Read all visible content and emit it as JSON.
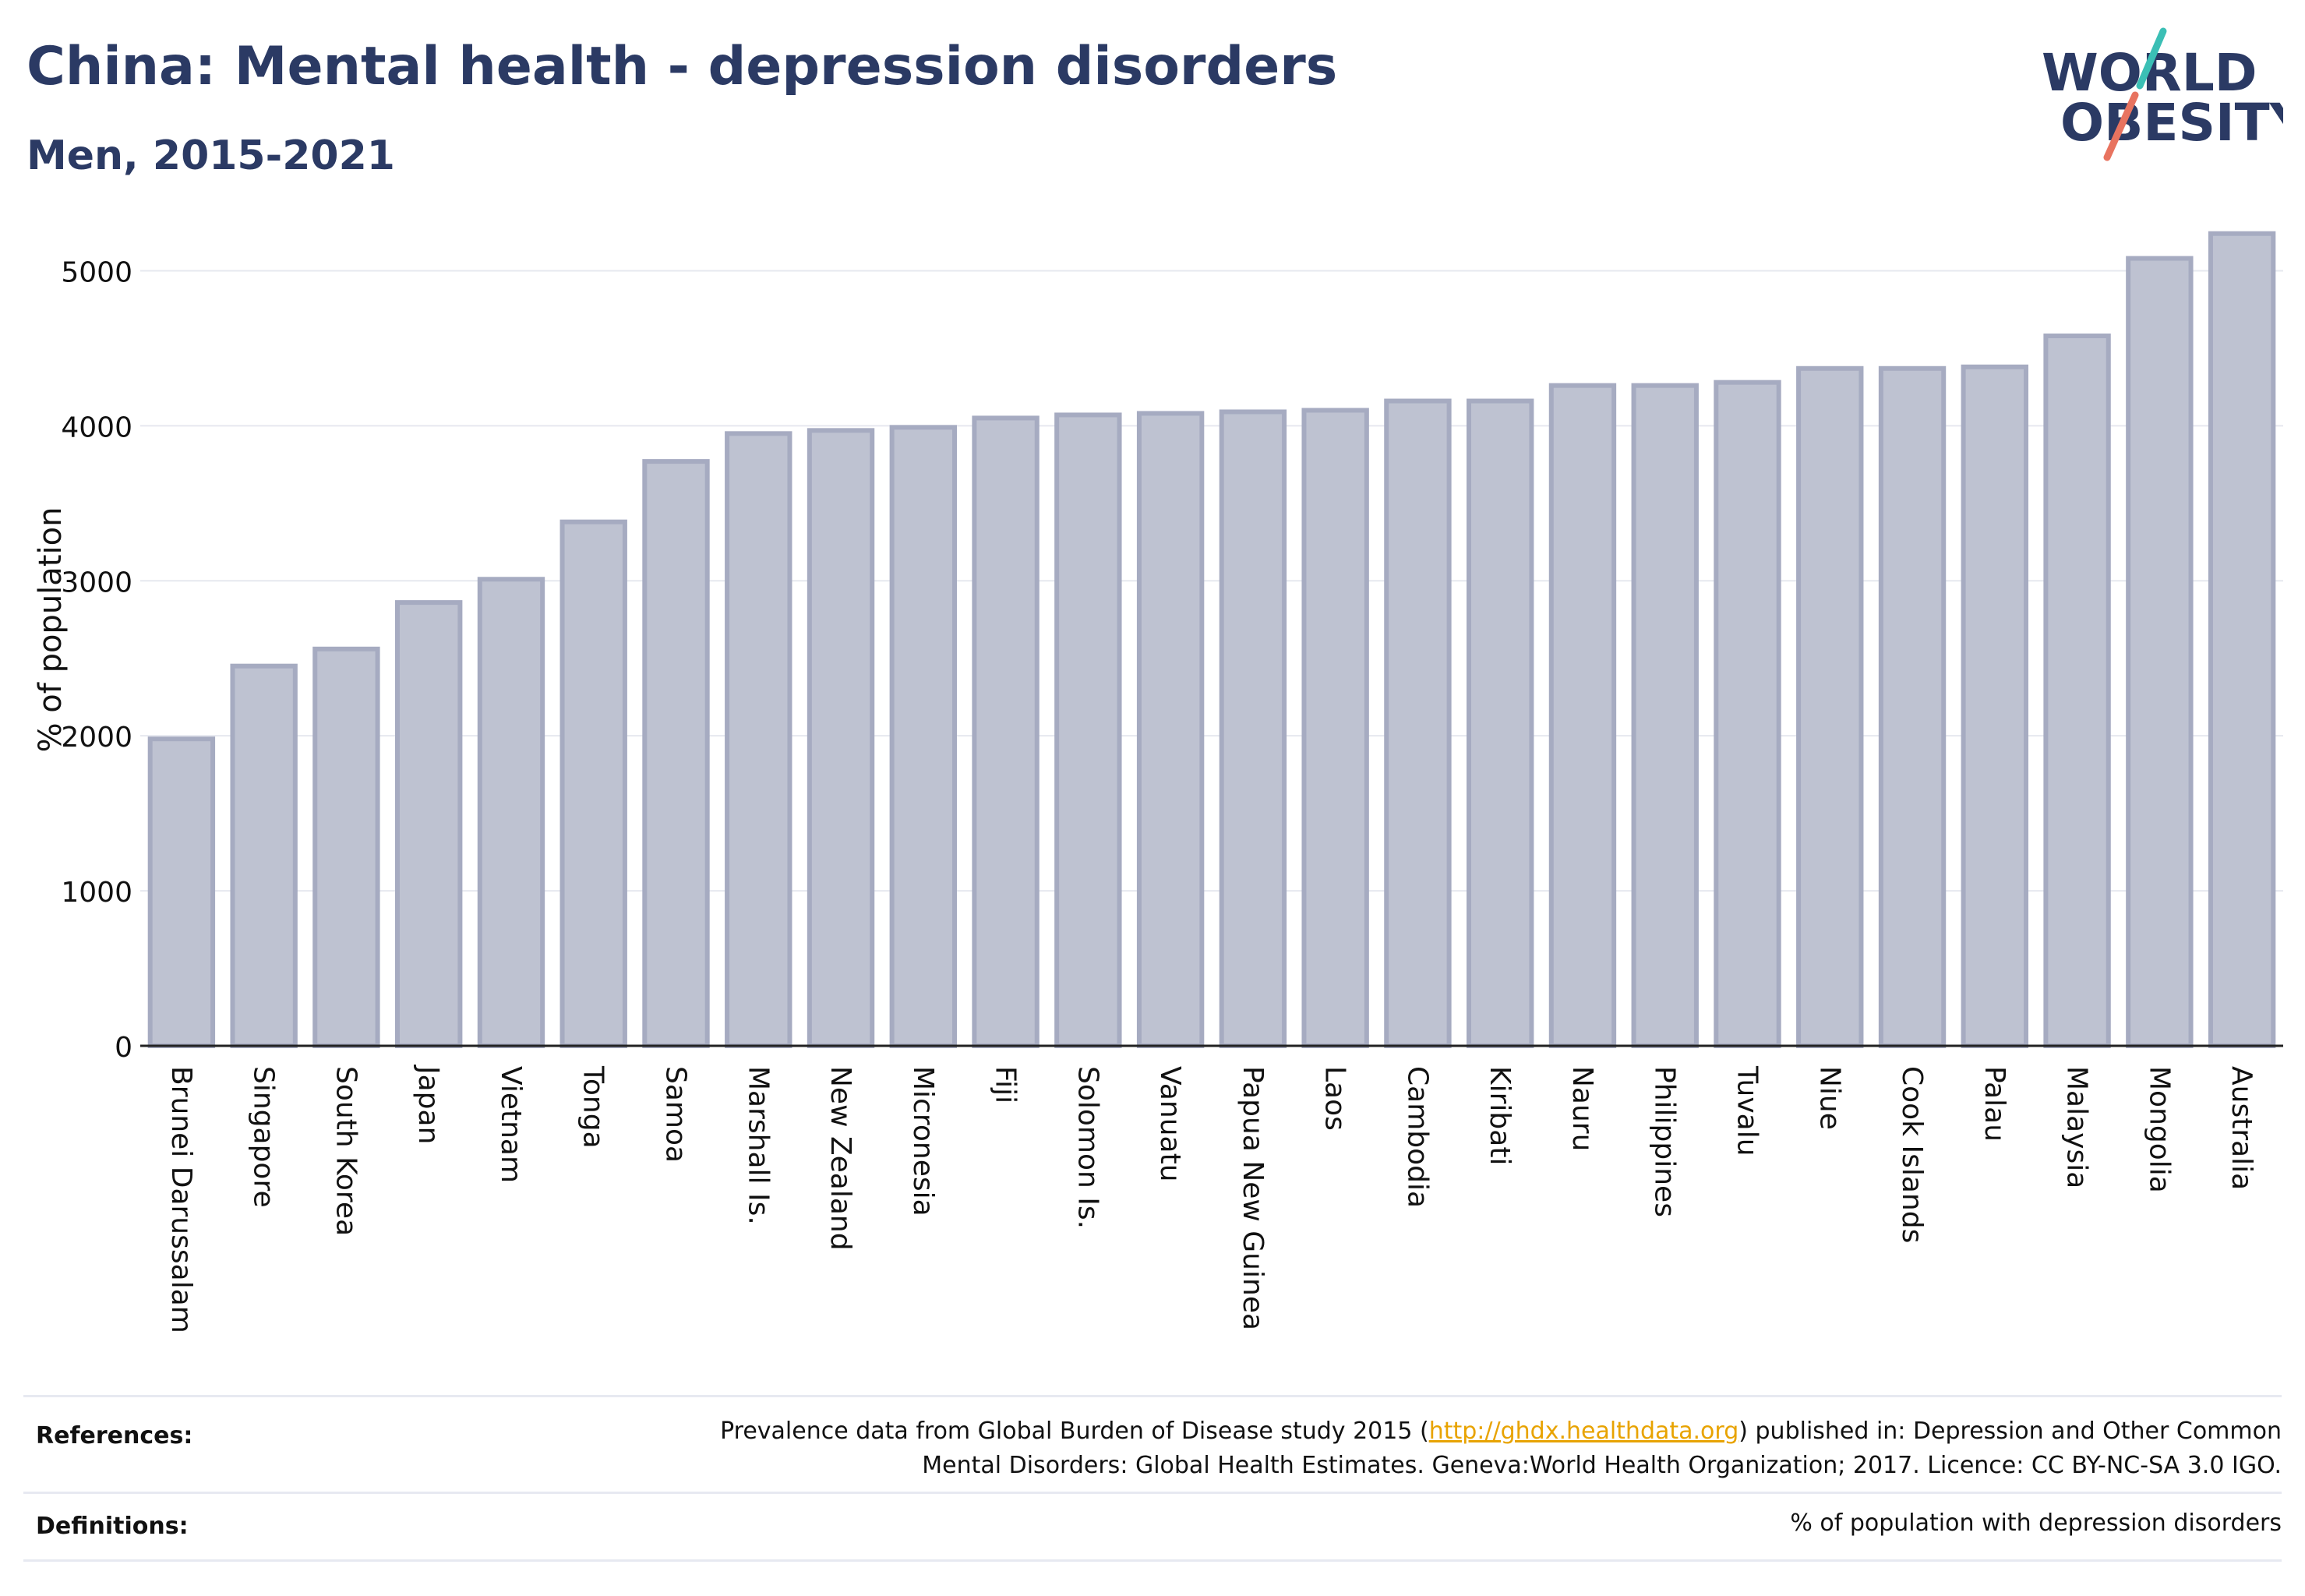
{
  "title": "China: Mental health - depression disorders",
  "subtitle": "Men, 2015-2021",
  "logo": {
    "line1": "WORLD",
    "line2": "OBESITY"
  },
  "chart_data": {
    "type": "bar",
    "categories": [
      "Brunei Darussalam",
      "Singapore",
      "South Korea",
      "Japan",
      "Vietnam",
      "Tonga",
      "Samoa",
      "Marshall Is.",
      "New Zealand",
      "Micronesia",
      "Fiji",
      "Solomon Is.",
      "Vanuatu",
      "Papua New Guinea",
      "Laos",
      "Cambodia",
      "Kiribati",
      "Nauru",
      "Philippines",
      "Tuvalu",
      "Niue",
      "Cook Islands",
      "Palau",
      "Malaysia",
      "Mongolia",
      "Australia"
    ],
    "values": [
      1980,
      2450,
      2560,
      2860,
      3010,
      3380,
      3770,
      3950,
      3970,
      3990,
      4050,
      4070,
      4080,
      4090,
      4100,
      4160,
      4160,
      4260,
      4260,
      4280,
      4370,
      4370,
      4380,
      4580,
      5080,
      5240
    ],
    "ylabel": "% of population",
    "yticks": [
      0,
      1000,
      2000,
      3000,
      4000,
      5000
    ],
    "ylim": [
      0,
      5500
    ],
    "grid": true,
    "bar_fill": "#bec2d1",
    "bar_stroke": "#a6abc1"
  },
  "footer": {
    "references_label": "References:",
    "references_pre": "Prevalence data from Global Burden of Disease study 2015 (",
    "references_link": "http://ghdx.healthdata.org",
    "references_post": ") published in: Depression and Other Common",
    "references_line2": "Mental Disorders: Global Health Estimates. Geneva:World Health Organization; 2017. Licence: CC BY-NC-SA 3.0 IGO.",
    "definitions_label": "Definitions:",
    "definitions_text": "% of population with depression disorders"
  },
  "colors": {
    "title": "#2b3a64",
    "logo_teal": "#3bbfb5",
    "logo_coral": "#e8735f",
    "link": "#e8a300"
  }
}
